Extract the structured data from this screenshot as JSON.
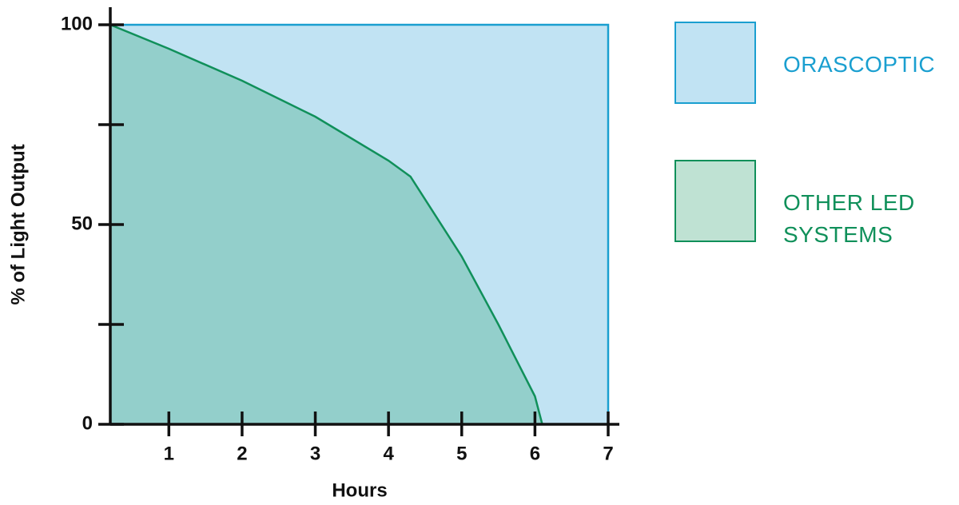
{
  "chart_data": {
    "type": "area",
    "x_label": "Hours",
    "y_label": "% of Light Output",
    "xlim": [
      0.2,
      7
    ],
    "xticks": [
      1,
      2,
      3,
      4,
      5,
      6,
      7
    ],
    "ylim": [
      0,
      100
    ],
    "yticks": [
      0,
      50,
      100
    ],
    "yminor_ticks": [
      25,
      75
    ],
    "series": [
      {
        "name": "ORASCOPTIC",
        "color": "#1a9fd0",
        "fill": "#c1e3f3",
        "legend_fill": "#c1e3f3",
        "x": [
          0.2,
          7
        ],
        "values": [
          100,
          100
        ]
      },
      {
        "name": "OTHER LED SYSTEMS",
        "color": "#10905a",
        "fill": "#93cfcb",
        "legend_fill": "#bfe2d3",
        "x": [
          0.2,
          1,
          2,
          3,
          4,
          4.3,
          5,
          5.5,
          6,
          6.1
        ],
        "values": [
          100,
          94,
          86,
          77,
          66,
          62,
          42,
          25,
          7,
          0
        ]
      }
    ]
  }
}
